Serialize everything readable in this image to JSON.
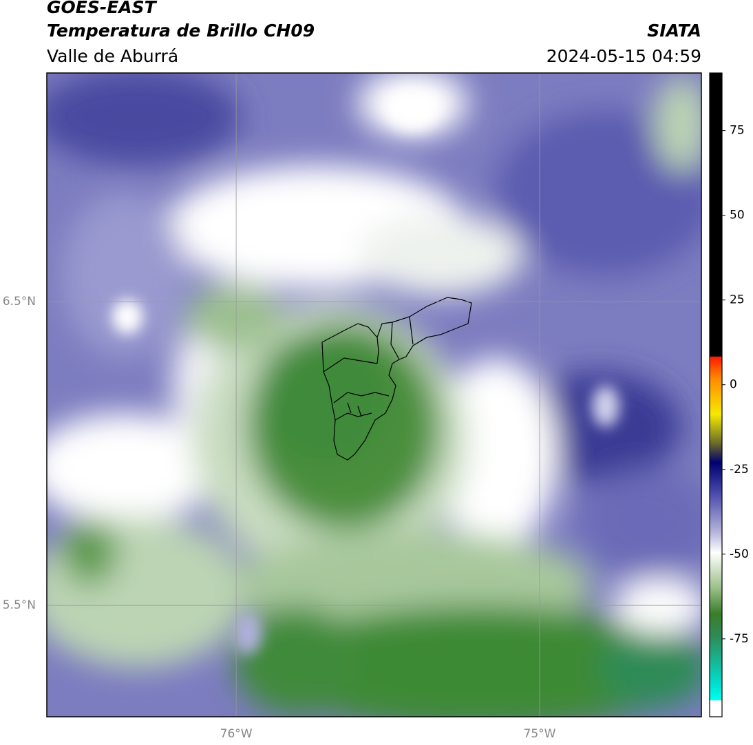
{
  "header": {
    "satellite": "GOES-EAST",
    "product": "Temperatura de Brillo CH09",
    "region": "Valle de Aburrá",
    "agency": "SIATA",
    "datetime": "2024-05-15 04:59"
  },
  "chart_data": {
    "type": "map",
    "xlim": [
      -76.624,
      -74.467
    ],
    "ylim": [
      5.133,
      7.253
    ],
    "xticks": [
      {
        "value": -76,
        "label": "76°W"
      },
      {
        "value": -75,
        "label": "75°W"
      }
    ],
    "yticks": [
      {
        "value": 6.5,
        "label": "6.5°N"
      },
      {
        "value": 5.5,
        "label": "5.5°N"
      }
    ],
    "grid": true,
    "colorbar": {
      "lim": [
        -98,
        92
      ],
      "ticks": [
        75,
        50,
        25,
        0,
        -25,
        -50,
        -75
      ]
    }
  }
}
